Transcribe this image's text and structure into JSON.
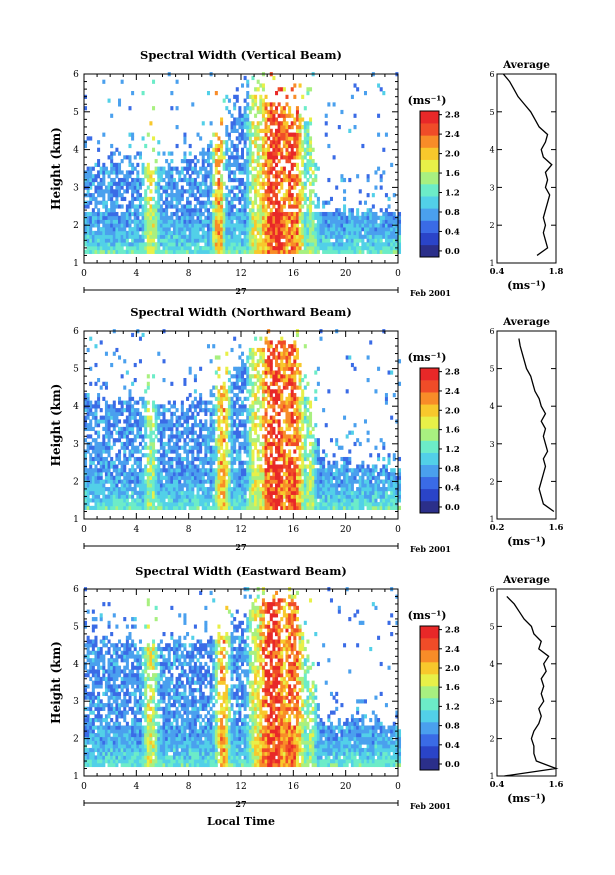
{
  "common": {
    "ylabel": "Height (km)",
    "x_ticks": [
      "0",
      "4",
      "8",
      "12",
      "16",
      "20",
      "0"
    ],
    "day_label": "27",
    "month_label": "Feb 2001",
    "colorbar_unit": "(ms⁻¹)",
    "colorbar_ticks": [
      "0.0",
      "0.4",
      "0.8",
      "1.2",
      "1.6",
      "2.0",
      "2.4",
      "2.8"
    ],
    "y_ticks": [
      "1",
      "2",
      "3",
      "4",
      "5",
      "6"
    ],
    "avg_title": "Average",
    "avg_unit": "(ms⁻¹)",
    "xlabel": "Local Time",
    "colors": [
      "#2b2f8a",
      "#2a44c8",
      "#3a6be6",
      "#4aa0ee",
      "#52d0e8",
      "#6cecc8",
      "#a8f080",
      "#e8f048",
      "#f8c82c",
      "#f88c28",
      "#f04c28",
      "#e82828"
    ]
  },
  "chart_data": [
    {
      "type": "heatmap",
      "title": "Spectral Width (Vertical Beam)",
      "xlabel": "",
      "ylabel": "Height (km)",
      "xlim": [
        0,
        24
      ],
      "ylim": [
        1,
        6
      ],
      "colorbar_range": [
        0.0,
        3.0
      ],
      "bursts": [
        [
          5,
          1.0,
          2.0
        ],
        [
          10.2,
          0.8,
          2.4
        ],
        [
          14.5,
          2.0,
          3.0
        ],
        [
          15.8,
          1.5,
          2.8
        ],
        [
          13.0,
          1.0,
          2.0
        ],
        [
          17.3,
          0.8,
          1.8
        ]
      ],
      "top_profile": [
        [
          0,
          3.6
        ],
        [
          4,
          3.5
        ],
        [
          8,
          3.6
        ],
        [
          10,
          4.2
        ],
        [
          13,
          5.5
        ],
        [
          17,
          4.8
        ],
        [
          18,
          2.4
        ],
        [
          24,
          2.3
        ]
      ],
      "average_profile": {
        "xlabel": "(ms⁻¹)",
        "xlim": [
          0.4,
          1.8
        ],
        "x_ticks": [
          "0.4",
          "1.8"
        ],
        "height": [
          1.2,
          1.4,
          1.6,
          1.8,
          2.0,
          2.2,
          2.4,
          2.6,
          2.8,
          3.0,
          3.2,
          3.4,
          3.6,
          3.8,
          4.0,
          4.2,
          4.4,
          4.6,
          4.8,
          5.0,
          5.2,
          5.4,
          5.6,
          5.8,
          6.0
        ],
        "width": [
          1.35,
          1.6,
          1.55,
          1.5,
          1.55,
          1.5,
          1.55,
          1.6,
          1.65,
          1.55,
          1.6,
          1.55,
          1.7,
          1.5,
          1.45,
          1.55,
          1.6,
          1.4,
          1.3,
          1.2,
          1.05,
          0.9,
          0.8,
          0.7,
          0.55
        ]
      }
    },
    {
      "type": "heatmap",
      "title": "Spectral Width (Northward Beam)",
      "xlabel": "",
      "ylabel": "Height (km)",
      "xlim": [
        0,
        24
      ],
      "ylim": [
        1,
        6
      ],
      "colorbar_range": [
        0.0,
        3.0
      ],
      "bursts": [
        [
          5,
          0.9,
          1.8
        ],
        [
          10.5,
          0.9,
          2.4
        ],
        [
          14.5,
          2.0,
          3.0
        ],
        [
          15.8,
          1.5,
          2.8
        ],
        [
          13.0,
          1.0,
          2.0
        ],
        [
          17.2,
          0.8,
          1.8
        ]
      ],
      "top_profile": [
        [
          0,
          4.2
        ],
        [
          4,
          4.0
        ],
        [
          8,
          4.0
        ],
        [
          10,
          4.3
        ],
        [
          13,
          5.6
        ],
        [
          16,
          5.6
        ],
        [
          18,
          2.6
        ],
        [
          24,
          2.2
        ]
      ],
      "average_profile": {
        "xlabel": "(ms⁻¹)",
        "xlim": [
          0.2,
          1.6
        ],
        "x_ticks": [
          "0.2",
          "1.6"
        ],
        "height": [
          1.2,
          1.4,
          1.6,
          1.8,
          2.0,
          2.2,
          2.4,
          2.6,
          2.8,
          3.0,
          3.2,
          3.4,
          3.6,
          3.8,
          4.0,
          4.2,
          4.4,
          4.6,
          4.8,
          5.0,
          5.2,
          5.4,
          5.6,
          5.8
        ],
        "width": [
          1.55,
          1.3,
          1.25,
          1.2,
          1.25,
          1.3,
          1.35,
          1.3,
          1.4,
          1.35,
          1.3,
          1.35,
          1.25,
          1.35,
          1.25,
          1.2,
          1.1,
          1.05,
          1.0,
          0.9,
          0.85,
          0.8,
          0.75,
          0.72
        ]
      }
    },
    {
      "type": "heatmap",
      "title": "Spectral Width (Eastward Beam)",
      "xlabel": "Local Time",
      "ylabel": "Height (km)",
      "xlim": [
        0,
        24
      ],
      "ylim": [
        1,
        6
      ],
      "colorbar_range": [
        0.0,
        3.0
      ],
      "bursts": [
        [
          5,
          1.0,
          2.0
        ],
        [
          10.5,
          0.9,
          2.4
        ],
        [
          14.3,
          2.0,
          3.0
        ],
        [
          15.8,
          1.5,
          2.8
        ],
        [
          13.0,
          1.0,
          2.0
        ],
        [
          17.2,
          0.8,
          1.8
        ]
      ],
      "top_profile": [
        [
          0,
          4.6
        ],
        [
          4,
          4.5
        ],
        [
          8,
          4.5
        ],
        [
          10,
          4.6
        ],
        [
          13,
          5.6
        ],
        [
          16,
          5.8
        ],
        [
          18,
          2.5
        ],
        [
          24,
          2.3
        ]
      ],
      "average_profile": {
        "xlabel": "(ms⁻¹)",
        "xlim": [
          0.4,
          1.6
        ],
        "x_ticks": [
          "0.4",
          "1.6"
        ],
        "height": [
          1.0,
          1.2,
          1.4,
          1.6,
          1.8,
          2.0,
          2.2,
          2.4,
          2.6,
          2.8,
          3.0,
          3.2,
          3.4,
          3.6,
          3.8,
          4.0,
          4.2,
          4.4,
          4.6,
          4.8,
          5.0,
          5.2,
          5.4,
          5.6,
          5.8
        ],
        "width": [
          0.55,
          1.6,
          1.2,
          1.15,
          1.15,
          1.1,
          1.15,
          1.25,
          1.3,
          1.25,
          1.35,
          1.3,
          1.35,
          1.3,
          1.4,
          1.35,
          1.45,
          1.25,
          1.3,
          1.15,
          1.1,
          0.95,
          0.85,
          0.75,
          0.6
        ]
      }
    }
  ]
}
